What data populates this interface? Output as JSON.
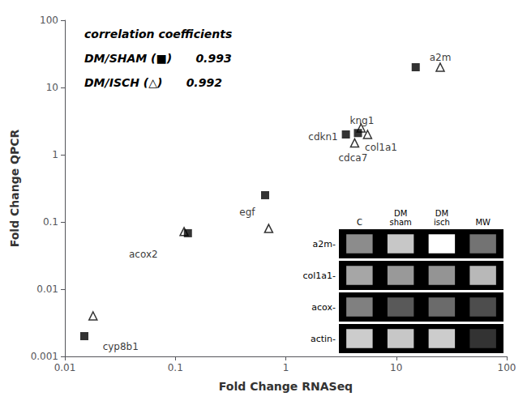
{
  "chart_data": {
    "type": "scatter",
    "xlabel": "Fold Change RNASeq",
    "ylabel": "Fold Change QPCR",
    "log": true,
    "grid": false,
    "xlim": [
      0.01,
      100
    ],
    "ylim": [
      0.001,
      100
    ],
    "xticks": [
      0.01,
      0.1,
      1,
      10,
      100
    ],
    "yticks": [
      0.001,
      0.01,
      0.1,
      1,
      10,
      100
    ],
    "series": [
      {
        "name": "DM/SHAM",
        "color": "#000000",
        "marker": "square",
        "x": [
          0.015,
          0.13,
          0.65,
          3.5,
          4.5,
          15
        ],
        "values": [
          0.002,
          0.068,
          0.25,
          2.0,
          2.1,
          20
        ]
      },
      {
        "name": "DM/ISCH",
        "color": "#000000",
        "marker": "triangle_open",
        "x": [
          0.018,
          0.12,
          0.7,
          4.8,
          5.5,
          4.2,
          25
        ],
        "values": [
          0.004,
          0.072,
          0.08,
          2.5,
          2.0,
          1.5,
          20
        ]
      }
    ],
    "labels": [
      {
        "text": "cyp8b1",
        "x": 0.022,
        "y": 0.0014
      },
      {
        "text": "acox2",
        "x": 0.038,
        "y": 0.033
      },
      {
        "text": "egf",
        "x": 0.38,
        "y": 0.14
      },
      {
        "text": "cdkn1",
        "x": 1.6,
        "y": 1.85
      },
      {
        "text": "kng1",
        "x": 3.8,
        "y": 3.2
      },
      {
        "text": "col1a1",
        "x": 5.2,
        "y": 1.3
      },
      {
        "text": "cdca7",
        "x": 3.0,
        "y": 0.9
      },
      {
        "text": "a2m",
        "x": 20,
        "y": 28
      }
    ],
    "annotations": [
      "correlation coefficients",
      "DM/SHAM (■)      0.993",
      "DM/ISCH (△)      0.992"
    ],
    "gel": {
      "rows": [
        "a2m-",
        "col1a1-",
        "acox-",
        "actin-"
      ],
      "lanes": [
        "C",
        "DM\nsham",
        "DM\nisch",
        "MW"
      ],
      "band_intensities": [
        [
          0.55,
          0.78,
          1.0,
          0.45
        ],
        [
          0.65,
          0.6,
          0.58,
          0.72
        ],
        [
          0.5,
          0.35,
          0.42,
          0.3
        ],
        [
          0.8,
          0.78,
          0.8,
          0.2
        ]
      ]
    }
  }
}
